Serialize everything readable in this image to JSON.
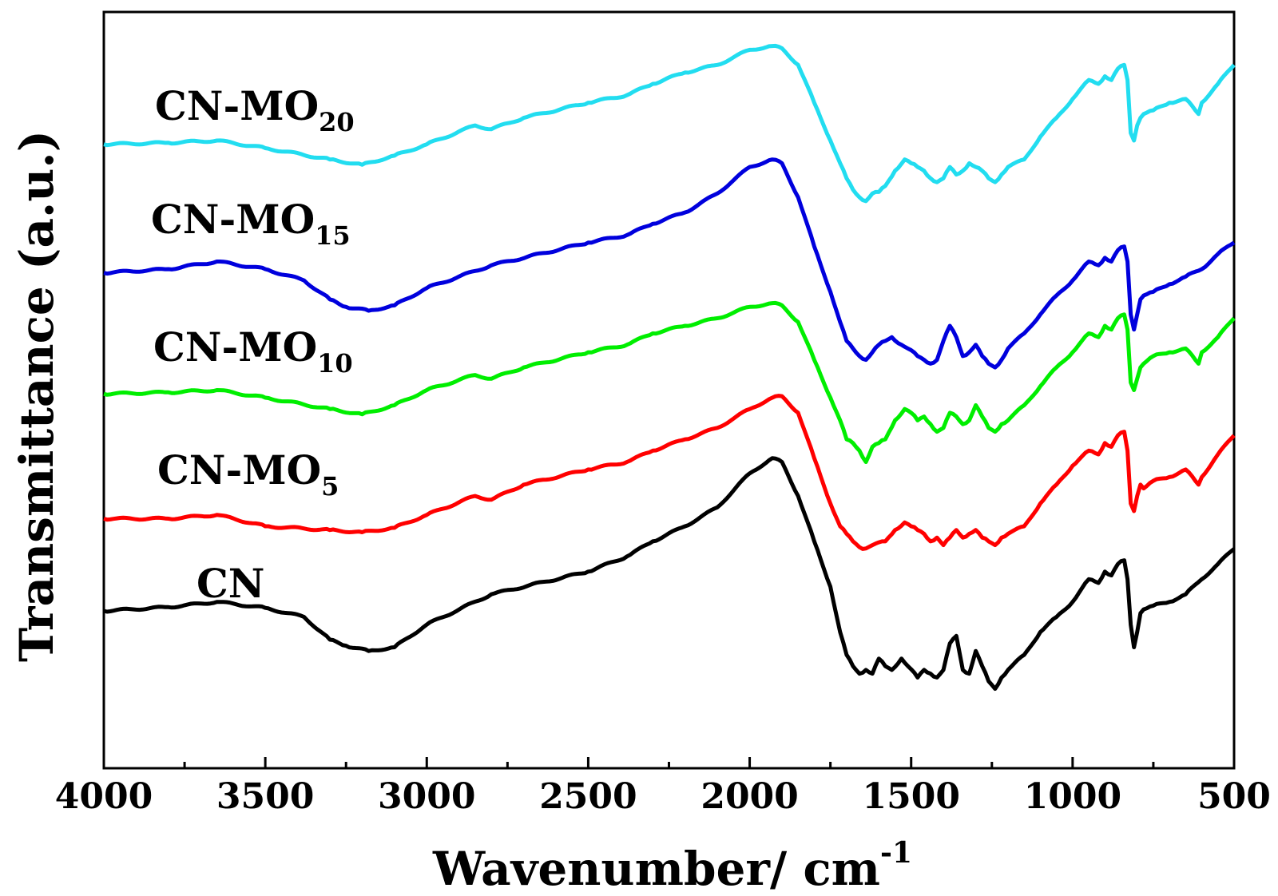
{
  "chart_data": {
    "type": "line",
    "title": "",
    "xlabel": "Wavenumber/ cm",
    "xlabel_sup": "-1",
    "ylabel": "Transmittance (a.u.)",
    "xlim": [
      4000,
      500
    ],
    "ylim": [
      0,
      10
    ],
    "x_ticks": [
      4000,
      3500,
      3000,
      2500,
      2000,
      1500,
      1000,
      500
    ],
    "x_tick_labels": [
      "4000",
      "3500",
      "3000",
      "2500",
      "2000",
      "1500",
      "1000",
      "500"
    ],
    "legend": "inline labels above each curve",
    "series": [
      {
        "name": "CN",
        "label_main": "CN",
        "label_sub": "",
        "color": "#000000",
        "x": [
          4000,
          3800,
          3650,
          3500,
          3380,
          3300,
          3250,
          3180,
          3100,
          3000,
          2800,
          2500,
          2380,
          2300,
          2200,
          2100,
          2000,
          1930,
          1900,
          1850,
          1800,
          1750,
          1720,
          1700,
          1680,
          1660,
          1640,
          1620,
          1600,
          1580,
          1560,
          1530,
          1510,
          1480,
          1460,
          1440,
          1420,
          1400,
          1380,
          1360,
          1340,
          1320,
          1300,
          1280,
          1260,
          1240,
          1220,
          1200,
          1150,
          1100,
          1050,
          1000,
          950,
          920,
          900,
          880,
          860,
          840,
          830,
          820,
          810,
          800,
          790,
          780,
          750,
          700,
          650,
          600,
          550,
          500
        ],
        "y": [
          2.08,
          2.13,
          2.2,
          2.12,
          2.0,
          1.7,
          1.62,
          1.55,
          1.6,
          1.9,
          2.3,
          2.6,
          2.8,
          3.0,
          3.2,
          3.45,
          3.9,
          4.1,
          4.05,
          3.6,
          3.0,
          2.4,
          1.8,
          1.5,
          1.35,
          1.25,
          1.3,
          1.25,
          1.45,
          1.35,
          1.3,
          1.45,
          1.35,
          1.2,
          1.3,
          1.25,
          1.2,
          1.3,
          1.65,
          1.75,
          1.3,
          1.25,
          1.55,
          1.35,
          1.15,
          1.05,
          1.2,
          1.3,
          1.5,
          1.8,
          2.0,
          2.2,
          2.5,
          2.45,
          2.6,
          2.55,
          2.7,
          2.75,
          2.5,
          1.9,
          1.6,
          1.8,
          2.05,
          2.1,
          2.15,
          2.2,
          2.3,
          2.5,
          2.7,
          2.9
        ]
      },
      {
        "name": "CN-MO5",
        "label_main": "CN-MO",
        "label_sub": "5",
        "color": "#ff0000",
        "x": [
          4000,
          3800,
          3650,
          3500,
          3300,
          3200,
          3100,
          3000,
          2850,
          2800,
          2700,
          2500,
          2380,
          2300,
          2200,
          2100,
          2000,
          1930,
          1900,
          1850,
          1800,
          1750,
          1720,
          1700,
          1680,
          1650,
          1620,
          1580,
          1550,
          1520,
          1500,
          1480,
          1460,
          1440,
          1420,
          1400,
          1380,
          1360,
          1340,
          1320,
          1300,
          1280,
          1260,
          1240,
          1220,
          1200,
          1150,
          1100,
          1050,
          1000,
          950,
          920,
          900,
          880,
          860,
          840,
          830,
          820,
          810,
          800,
          790,
          780,
          750,
          700,
          650,
          620,
          610,
          600,
          550,
          500
        ],
        "y": [
          3.3,
          3.3,
          3.35,
          3.2,
          3.15,
          3.12,
          3.18,
          3.35,
          3.6,
          3.55,
          3.75,
          3.95,
          4.05,
          4.2,
          4.35,
          4.5,
          4.75,
          4.9,
          4.92,
          4.7,
          4.1,
          3.5,
          3.2,
          3.1,
          3.0,
          2.9,
          2.95,
          3.0,
          3.15,
          3.25,
          3.2,
          3.15,
          3.1,
          3.0,
          3.05,
          2.95,
          3.05,
          3.15,
          3.05,
          3.1,
          3.15,
          3.05,
          3.0,
          2.95,
          3.05,
          3.1,
          3.2,
          3.5,
          3.75,
          4.0,
          4.2,
          4.15,
          4.3,
          4.25,
          4.4,
          4.45,
          4.2,
          3.5,
          3.4,
          3.6,
          3.75,
          3.7,
          3.8,
          3.85,
          3.95,
          3.8,
          3.75,
          3.85,
          4.15,
          4.4
        ]
      },
      {
        "name": "CN-MO10",
        "label_main": "CN-MO",
        "label_sub": "10",
        "color": "#00ee00",
        "x": [
          4000,
          3800,
          3650,
          3500,
          3300,
          3200,
          3100,
          3000,
          2850,
          2800,
          2700,
          2500,
          2380,
          2300,
          2200,
          2100,
          2000,
          1930,
          1900,
          1850,
          1800,
          1750,
          1720,
          1700,
          1680,
          1660,
          1640,
          1620,
          1600,
          1580,
          1550,
          1520,
          1500,
          1480,
          1460,
          1440,
          1420,
          1400,
          1380,
          1360,
          1340,
          1320,
          1300,
          1280,
          1260,
          1240,
          1220,
          1200,
          1150,
          1100,
          1050,
          1000,
          950,
          920,
          900,
          880,
          860,
          840,
          830,
          820,
          810,
          800,
          790,
          780,
          750,
          700,
          650,
          620,
          610,
          600,
          550,
          500
        ],
        "y": [
          4.95,
          4.97,
          5.0,
          4.9,
          4.75,
          4.68,
          4.8,
          5.0,
          5.2,
          5.15,
          5.3,
          5.5,
          5.6,
          5.75,
          5.85,
          5.95,
          6.1,
          6.15,
          6.12,
          5.9,
          5.4,
          4.9,
          4.6,
          4.35,
          4.3,
          4.2,
          4.05,
          4.25,
          4.3,
          4.35,
          4.6,
          4.75,
          4.7,
          4.6,
          4.65,
          4.55,
          4.45,
          4.5,
          4.7,
          4.65,
          4.55,
          4.6,
          4.8,
          4.65,
          4.5,
          4.45,
          4.55,
          4.6,
          4.8,
          5.05,
          5.3,
          5.5,
          5.75,
          5.7,
          5.85,
          5.8,
          5.95,
          6.0,
          5.8,
          5.1,
          5.0,
          5.15,
          5.3,
          5.35,
          5.45,
          5.5,
          5.55,
          5.4,
          5.35,
          5.5,
          5.7,
          5.95
        ]
      },
      {
        "name": "CN-MO15",
        "label_main": "CN-MO",
        "label_sub": "15",
        "color": "#0000dd",
        "x": [
          4000,
          3800,
          3650,
          3500,
          3380,
          3300,
          3250,
          3180,
          3100,
          3000,
          2800,
          2500,
          2380,
          2300,
          2200,
          2100,
          2000,
          1930,
          1900,
          1850,
          1800,
          1750,
          1720,
          1700,
          1680,
          1660,
          1640,
          1620,
          1600,
          1580,
          1560,
          1530,
          1510,
          1480,
          1460,
          1440,
          1420,
          1400,
          1380,
          1360,
          1340,
          1320,
          1300,
          1280,
          1260,
          1240,
          1220,
          1200,
          1150,
          1100,
          1050,
          1000,
          950,
          920,
          900,
          880,
          860,
          840,
          830,
          820,
          810,
          800,
          790,
          780,
          750,
          700,
          650,
          600,
          550,
          500
        ],
        "y": [
          6.55,
          6.6,
          6.7,
          6.6,
          6.45,
          6.2,
          6.1,
          6.05,
          6.12,
          6.35,
          6.65,
          6.95,
          7.05,
          7.2,
          7.35,
          7.6,
          7.95,
          8.05,
          8.0,
          7.55,
          6.9,
          6.3,
          5.9,
          5.65,
          5.55,
          5.45,
          5.4,
          5.5,
          5.6,
          5.65,
          5.7,
          5.6,
          5.55,
          5.45,
          5.4,
          5.35,
          5.4,
          5.65,
          5.85,
          5.7,
          5.45,
          5.5,
          5.6,
          5.45,
          5.35,
          5.3,
          5.4,
          5.55,
          5.75,
          6.0,
          6.25,
          6.45,
          6.7,
          6.65,
          6.75,
          6.7,
          6.85,
          6.9,
          6.7,
          6.0,
          5.8,
          6.0,
          6.2,
          6.25,
          6.3,
          6.4,
          6.5,
          6.6,
          6.8,
          6.95
        ]
      },
      {
        "name": "CN-MO20",
        "label_main": "CN-MO",
        "label_sub": "20",
        "color": "#22ddf0",
        "x": [
          4000,
          3800,
          3650,
          3500,
          3300,
          3200,
          3100,
          3000,
          2850,
          2800,
          2700,
          2500,
          2380,
          2300,
          2200,
          2100,
          2000,
          1930,
          1900,
          1850,
          1800,
          1750,
          1720,
          1700,
          1680,
          1660,
          1640,
          1620,
          1600,
          1580,
          1550,
          1520,
          1500,
          1480,
          1460,
          1440,
          1420,
          1400,
          1380,
          1360,
          1340,
          1320,
          1300,
          1280,
          1260,
          1240,
          1220,
          1200,
          1150,
          1100,
          1050,
          1000,
          950,
          920,
          900,
          880,
          860,
          840,
          830,
          820,
          810,
          800,
          790,
          780,
          750,
          700,
          650,
          620,
          610,
          600,
          550,
          500
        ],
        "y": [
          8.25,
          8.27,
          8.3,
          8.2,
          8.05,
          7.98,
          8.1,
          8.25,
          8.5,
          8.45,
          8.6,
          8.8,
          8.9,
          9.05,
          9.2,
          9.3,
          9.5,
          9.55,
          9.52,
          9.3,
          8.8,
          8.3,
          8.0,
          7.8,
          7.65,
          7.55,
          7.5,
          7.6,
          7.62,
          7.7,
          7.9,
          8.05,
          8.0,
          7.95,
          7.9,
          7.8,
          7.75,
          7.8,
          7.95,
          7.85,
          7.9,
          8.0,
          7.95,
          7.9,
          7.8,
          7.75,
          7.85,
          7.95,
          8.05,
          8.35,
          8.6,
          8.85,
          9.1,
          9.05,
          9.15,
          9.1,
          9.25,
          9.3,
          9.1,
          8.4,
          8.3,
          8.5,
          8.6,
          8.65,
          8.7,
          8.8,
          8.85,
          8.7,
          8.65,
          8.8,
          9.05,
          9.3
        ]
      }
    ]
  }
}
